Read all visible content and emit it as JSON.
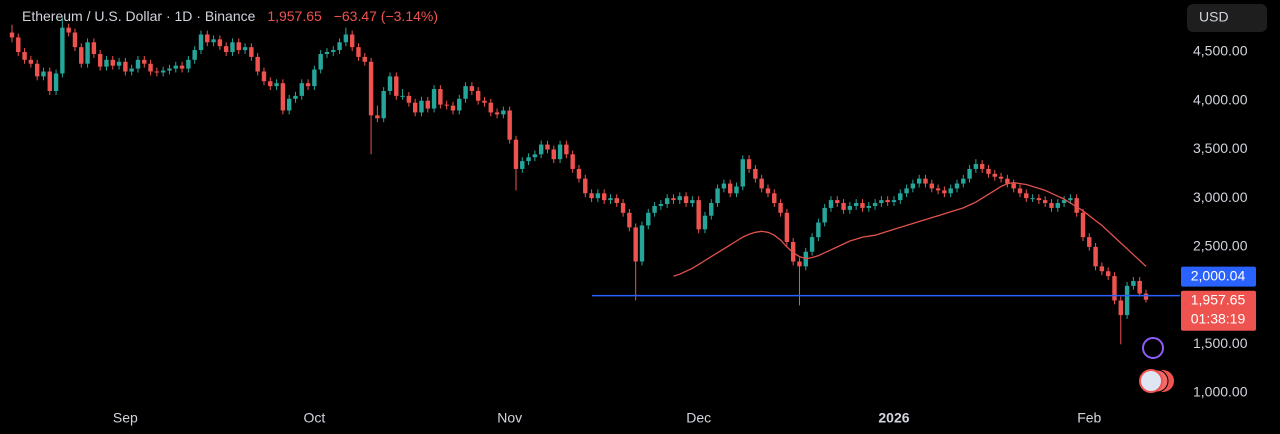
{
  "chart_data": {
    "type": "candlestick",
    "title": "Ethereum / U.S. Dollar · 1D · Binance",
    "last_price": {
      "value": 1957.65,
      "label": "1,957.65"
    },
    "change": "−63.47 (−3.14%)",
    "currency": "USD",
    "countdown": "01:38:19",
    "up_color": "#26a69a",
    "down_color": "#ef5350",
    "xlim": [
      -1.9,
      185.4
    ],
    "xticks": [
      {
        "value": 18,
        "label": "Sep"
      },
      {
        "value": 48,
        "label": "Oct"
      },
      {
        "value": 79,
        "label": "Nov"
      },
      {
        "value": 109,
        "label": "Dec"
      },
      {
        "value": 140,
        "label": "2026"
      },
      {
        "value": 171,
        "label": "Feb"
      }
    ],
    "ylim": [
      877,
      5034
    ],
    "yticks": [
      {
        "value": 1000,
        "label": "1,000.00"
      },
      {
        "value": 1500,
        "label": "1,500.00"
      },
      {
        "value": 2500,
        "label": "2,500.00"
      },
      {
        "value": 3000,
        "label": "3,000.00"
      },
      {
        "value": 3500,
        "label": "3,500.00"
      },
      {
        "value": 4000,
        "label": "4,000.00"
      },
      {
        "value": 4500,
        "label": "4,500.00"
      }
    ],
    "grid": false,
    "hline": {
      "value": 2000.04,
      "label": "2,000.04",
      "color": "#2962ff"
    },
    "candles": [
      [
        4700,
        4780,
        4600,
        4650
      ],
      [
        4650,
        4690,
        4460,
        4500
      ],
      [
        4500,
        4540,
        4380,
        4420
      ],
      [
        4420,
        4460,
        4340,
        4380
      ],
      [
        4380,
        4420,
        4210,
        4250
      ],
      [
        4250,
        4340,
        4210,
        4300
      ],
      [
        4300,
        4340,
        4060,
        4100
      ],
      [
        4100,
        4320,
        4060,
        4280
      ],
      [
        4280,
        4850,
        4240,
        4750
      ],
      [
        4750,
        4790,
        4660,
        4700
      ],
      [
        4700,
        4740,
        4510,
        4550
      ],
      [
        4550,
        4590,
        4340,
        4380
      ],
      [
        4380,
        4640,
        4340,
        4600
      ],
      [
        4600,
        4640,
        4440,
        4480
      ],
      [
        4480,
        4520,
        4310,
        4350
      ],
      [
        4350,
        4460,
        4310,
        4420
      ],
      [
        4420,
        4460,
        4320,
        4360
      ],
      [
        4360,
        4440,
        4320,
        4400
      ],
      [
        4400,
        4440,
        4260,
        4300
      ],
      [
        4300,
        4370,
        4260,
        4330
      ],
      [
        4330,
        4460,
        4290,
        4420
      ],
      [
        4420,
        4460,
        4340,
        4380
      ],
      [
        4380,
        4420,
        4260,
        4300
      ],
      [
        4300,
        4340,
        4250,
        4290
      ],
      [
        4290,
        4350,
        4250,
        4310
      ],
      [
        4310,
        4370,
        4270,
        4330
      ],
      [
        4330,
        4400,
        4290,
        4360
      ],
      [
        4360,
        4400,
        4290,
        4330
      ],
      [
        4330,
        4460,
        4290,
        4420
      ],
      [
        4420,
        4560,
        4380,
        4520
      ],
      [
        4520,
        4720,
        4480,
        4680
      ],
      [
        4680,
        4720,
        4560,
        4600
      ],
      [
        4600,
        4670,
        4560,
        4630
      ],
      [
        4630,
        4670,
        4520,
        4560
      ],
      [
        4560,
        4600,
        4460,
        4500
      ],
      [
        4500,
        4640,
        4460,
        4600
      ],
      [
        4600,
        4640,
        4480,
        4520
      ],
      [
        4520,
        4590,
        4480,
        4550
      ],
      [
        4550,
        4590,
        4410,
        4450
      ],
      [
        4450,
        4490,
        4260,
        4300
      ],
      [
        4300,
        4340,
        4160,
        4200
      ],
      [
        4200,
        4240,
        4110,
        4150
      ],
      [
        4150,
        4220,
        4110,
        4180
      ],
      [
        4180,
        4220,
        3860,
        3900
      ],
      [
        3900,
        4060,
        3860,
        4020
      ],
      [
        4020,
        4090,
        3980,
        4050
      ],
      [
        4050,
        4220,
        4010,
        4180
      ],
      [
        4180,
        4220,
        4110,
        4150
      ],
      [
        4150,
        4360,
        4110,
        4320
      ],
      [
        4320,
        4520,
        4280,
        4480
      ],
      [
        4480,
        4540,
        4440,
        4500
      ],
      [
        4500,
        4560,
        4460,
        4520
      ],
      [
        4520,
        4640,
        4480,
        4600
      ],
      [
        4600,
        4750,
        4560,
        4680
      ],
      [
        4680,
        4720,
        4510,
        4550
      ],
      [
        4550,
        4590,
        4410,
        4450
      ],
      [
        4450,
        4490,
        4360,
        4400
      ],
      [
        4400,
        4440,
        3450,
        3850
      ],
      [
        3850,
        3950,
        3780,
        3820
      ],
      [
        3820,
        4140,
        3780,
        4100
      ],
      [
        4100,
        4290,
        4060,
        4250
      ],
      [
        4250,
        4290,
        4010,
        4050
      ],
      [
        4050,
        4120,
        4010,
        4050
      ],
      [
        4050,
        4090,
        3940,
        3980
      ],
      [
        3980,
        4020,
        3840,
        3880
      ],
      [
        3880,
        4040,
        3840,
        4000
      ],
      [
        4000,
        4040,
        3880,
        3920
      ],
      [
        3920,
        4160,
        3880,
        4120
      ],
      [
        4120,
        4160,
        3920,
        3960
      ],
      [
        3960,
        4000,
        3910,
        3950
      ],
      [
        3950,
        3990,
        3860,
        3900
      ],
      [
        3900,
        4060,
        3860,
        4020
      ],
      [
        4020,
        4190,
        3980,
        4150
      ],
      [
        4150,
        4190,
        4060,
        4100
      ],
      [
        4100,
        4140,
        3960,
        4000
      ],
      [
        4000,
        4040,
        3940,
        3980
      ],
      [
        3980,
        4020,
        3840,
        3880
      ],
      [
        3880,
        3920,
        3820,
        3860
      ],
      [
        3860,
        3940,
        3820,
        3900
      ],
      [
        3900,
        3940,
        3560,
        3600
      ],
      [
        3600,
        3640,
        3080,
        3300
      ],
      [
        3300,
        3420,
        3260,
        3380
      ],
      [
        3380,
        3460,
        3340,
        3420
      ],
      [
        3420,
        3490,
        3380,
        3450
      ],
      [
        3450,
        3590,
        3410,
        3550
      ],
      [
        3550,
        3590,
        3460,
        3500
      ],
      [
        3500,
        3540,
        3360,
        3400
      ],
      [
        3400,
        3590,
        3360,
        3550
      ],
      [
        3550,
        3590,
        3410,
        3450
      ],
      [
        3450,
        3490,
        3260,
        3300
      ],
      [
        3300,
        3340,
        3160,
        3200
      ],
      [
        3200,
        3240,
        3010,
        3050
      ],
      [
        3050,
        3090,
        2960,
        3000
      ],
      [
        3000,
        3090,
        2960,
        3050
      ],
      [
        3050,
        3090,
        2940,
        2980
      ],
      [
        2980,
        3040,
        2940,
        3000
      ],
      [
        3000,
        3040,
        2910,
        2950
      ],
      [
        2950,
        2990,
        2810,
        2850
      ],
      [
        2850,
        2890,
        2660,
        2700
      ],
      [
        2700,
        2740,
        1950,
        2350
      ],
      [
        2350,
        2760,
        2310,
        2720
      ],
      [
        2720,
        2890,
        2680,
        2850
      ],
      [
        2850,
        2960,
        2810,
        2920
      ],
      [
        2920,
        2980,
        2880,
        2940
      ],
      [
        2940,
        3040,
        2900,
        3000
      ],
      [
        3000,
        3040,
        2940,
        2980
      ],
      [
        2980,
        3060,
        2940,
        3020
      ],
      [
        3020,
        3060,
        2910,
        2950
      ],
      [
        2950,
        3020,
        2910,
        2980
      ],
      [
        2980,
        3020,
        2640,
        2680
      ],
      [
        2680,
        2860,
        2640,
        2820
      ],
      [
        2820,
        2990,
        2780,
        2950
      ],
      [
        2950,
        3140,
        2910,
        3100
      ],
      [
        3100,
        3190,
        3060,
        3150
      ],
      [
        3150,
        3190,
        3010,
        3050
      ],
      [
        3050,
        3160,
        3010,
        3120
      ],
      [
        3120,
        3440,
        3080,
        3400
      ],
      [
        3400,
        3440,
        3260,
        3300
      ],
      [
        3300,
        3340,
        3160,
        3200
      ],
      [
        3200,
        3240,
        3060,
        3100
      ],
      [
        3100,
        3140,
        3010,
        3050
      ],
      [
        3050,
        3090,
        2910,
        2950
      ],
      [
        2950,
        2990,
        2810,
        2850
      ],
      [
        2850,
        2890,
        2510,
        2550
      ],
      [
        2550,
        2590,
        2310,
        2350
      ],
      [
        2350,
        2390,
        1900,
        2300
      ],
      [
        2300,
        2490,
        2260,
        2450
      ],
      [
        2450,
        2640,
        2410,
        2600
      ],
      [
        2600,
        2790,
        2560,
        2750
      ],
      [
        2750,
        2940,
        2710,
        2900
      ],
      [
        2900,
        3020,
        2860,
        2980
      ],
      [
        2980,
        3020,
        2910,
        2950
      ],
      [
        2950,
        2990,
        2840,
        2880
      ],
      [
        2880,
        2960,
        2840,
        2920
      ],
      [
        2920,
        2990,
        2880,
        2950
      ],
      [
        2950,
        2990,
        2860,
        2900
      ],
      [
        2900,
        2960,
        2860,
        2920
      ],
      [
        2920,
        2990,
        2880,
        2950
      ],
      [
        2950,
        3020,
        2910,
        2980
      ],
      [
        2980,
        3020,
        2920,
        2960
      ],
      [
        2960,
        3020,
        2920,
        2980
      ],
      [
        2980,
        3090,
        2940,
        3050
      ],
      [
        3050,
        3140,
        3010,
        3100
      ],
      [
        3100,
        3190,
        3060,
        3150
      ],
      [
        3150,
        3240,
        3110,
        3200
      ],
      [
        3200,
        3240,
        3110,
        3150
      ],
      [
        3150,
        3190,
        3060,
        3100
      ],
      [
        3100,
        3140,
        3040,
        3080
      ],
      [
        3080,
        3120,
        3010,
        3050
      ],
      [
        3050,
        3140,
        3010,
        3100
      ],
      [
        3100,
        3190,
        3060,
        3150
      ],
      [
        3150,
        3240,
        3110,
        3200
      ],
      [
        3200,
        3340,
        3160,
        3300
      ],
      [
        3300,
        3400,
        3260,
        3350
      ],
      [
        3350,
        3390,
        3260,
        3300
      ],
      [
        3300,
        3340,
        3210,
        3250
      ],
      [
        3250,
        3290,
        3180,
        3220
      ],
      [
        3220,
        3260,
        3160,
        3200
      ],
      [
        3200,
        3240,
        3110,
        3150
      ],
      [
        3150,
        3190,
        3060,
        3100
      ],
      [
        3100,
        3140,
        3010,
        3050
      ],
      [
        3050,
        3090,
        2960,
        3000
      ],
      [
        3000,
        3040,
        2960,
        3000
      ],
      [
        3000,
        3040,
        2940,
        2980
      ],
      [
        2980,
        3020,
        2910,
        2950
      ],
      [
        2950,
        2990,
        2860,
        2900
      ],
      [
        2900,
        2990,
        2860,
        2950
      ],
      [
        2950,
        3020,
        2910,
        2980
      ],
      [
        2980,
        3040,
        2940,
        3000
      ],
      [
        3000,
        3040,
        2810,
        2850
      ],
      [
        2850,
        2890,
        2560,
        2600
      ],
      [
        2600,
        2640,
        2460,
        2500
      ],
      [
        2500,
        2540,
        2260,
        2300
      ],
      [
        2300,
        2340,
        2210,
        2250
      ],
      [
        2250,
        2290,
        2160,
        2200
      ],
      [
        2200,
        2240,
        1910,
        1950
      ],
      [
        1950,
        1990,
        1500,
        1800
      ],
      [
        1800,
        2140,
        1760,
        2100
      ],
      [
        2100,
        2190,
        2060,
        2150
      ],
      [
        2150,
        2190,
        1990,
        2021.12
      ],
      [
        2021.12,
        2060,
        1930,
        1957.65
      ]
    ],
    "ma": {
      "color": "#e0524d",
      "values": [
        null,
        null,
        null,
        null,
        null,
        null,
        null,
        null,
        null,
        null,
        null,
        null,
        null,
        null,
        null,
        null,
        null,
        null,
        null,
        null,
        null,
        null,
        null,
        null,
        null,
        null,
        null,
        null,
        null,
        null,
        null,
        null,
        null,
        null,
        null,
        null,
        null,
        null,
        null,
        null,
        null,
        null,
        null,
        null,
        null,
        null,
        null,
        null,
        null,
        null,
        null,
        null,
        null,
        null,
        null,
        null,
        null,
        null,
        null,
        null,
        null,
        null,
        null,
        null,
        null,
        null,
        null,
        null,
        null,
        null,
        null,
        null,
        null,
        null,
        null,
        null,
        null,
        null,
        null,
        null,
        null,
        null,
        null,
        null,
        null,
        null,
        null,
        null,
        null,
        null,
        null,
        null,
        null,
        null,
        null,
        null,
        null,
        null,
        null,
        null,
        null,
        null,
        null,
        null,
        null,
        2200,
        2220,
        2250,
        2280,
        2320,
        2360,
        2400,
        2440,
        2480,
        2520,
        2560,
        2600,
        2630,
        2650,
        2660,
        2650,
        2620,
        2570,
        2500,
        2440,
        2400,
        2380,
        2390,
        2410,
        2440,
        2470,
        2500,
        2530,
        2560,
        2580,
        2600,
        2610,
        2620,
        2640,
        2660,
        2680,
        2700,
        2720,
        2740,
        2760,
        2780,
        2800,
        2820,
        2840,
        2860,
        2880,
        2900,
        2930,
        2960,
        3000,
        3040,
        3080,
        3120,
        3150,
        3160,
        3150,
        3140,
        3120,
        3100,
        3080,
        3050,
        3020,
        2990,
        2950,
        2910,
        2870,
        2820,
        2770,
        2720,
        2660,
        2600,
        2540,
        2480,
        2420,
        2360,
        2300
      ]
    }
  }
}
